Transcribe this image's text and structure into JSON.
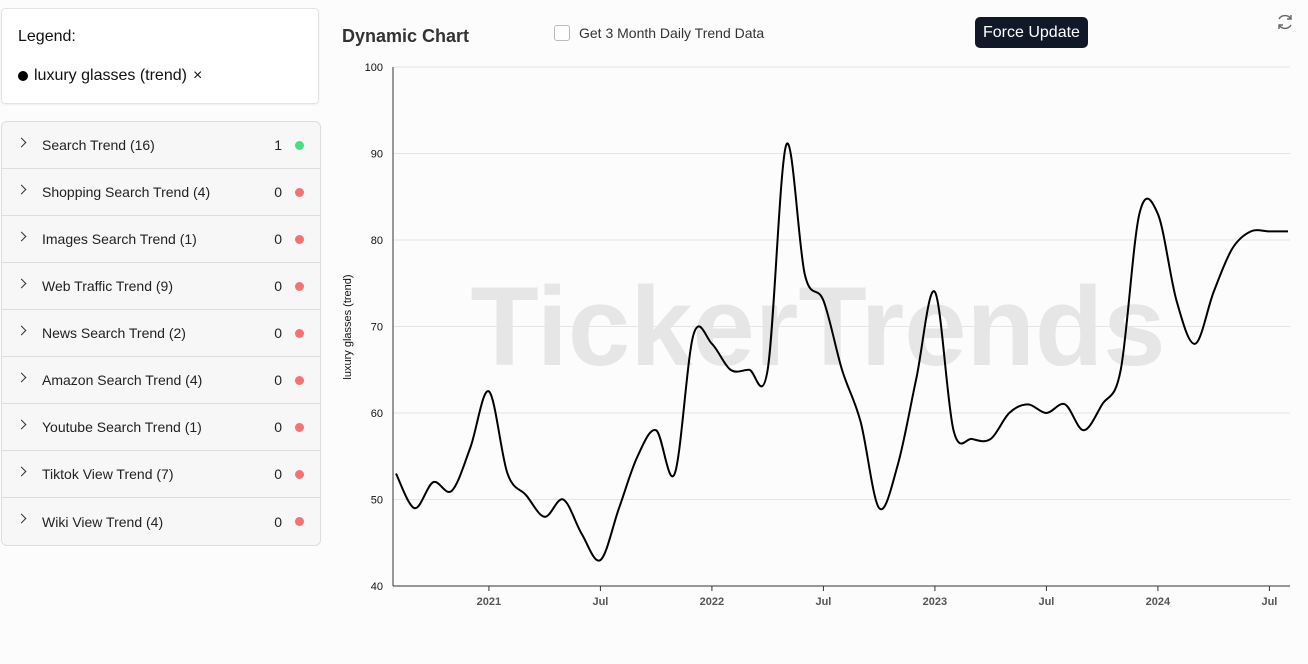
{
  "legend": {
    "title": "Legend:",
    "items": [
      {
        "name": "luxury glasses (trend)",
        "color": "#000000",
        "remove": "×"
      }
    ]
  },
  "sidebar": [
    {
      "label": "Search Trend (16)",
      "count": "1",
      "color": "#4ade80"
    },
    {
      "label": "Shopping Search Trend (4)",
      "count": "0",
      "color": "#f87171"
    },
    {
      "label": "Images Search Trend (1)",
      "count": "0",
      "color": "#f87171"
    },
    {
      "label": "Web Traffic Trend (9)",
      "count": "0",
      "color": "#f87171"
    },
    {
      "label": "News Search Trend (2)",
      "count": "0",
      "color": "#f87171"
    },
    {
      "label": "Amazon Search Trend (4)",
      "count": "0",
      "color": "#f87171"
    },
    {
      "label": "Youtube Search Trend (1)",
      "count": "0",
      "color": "#f87171"
    },
    {
      "label": "Tiktok View Trend (7)",
      "count": "0",
      "color": "#f87171"
    },
    {
      "label": "Wiki View Trend (4)",
      "count": "0",
      "color": "#f87171"
    }
  ],
  "controls": {
    "checkbox": "Get 3 Month Daily Trend Data",
    "button": "Force Update"
  },
  "chart_data": {
    "type": "line",
    "title": "Dynamic Chart",
    "ylabel": "luxury glasses  (trend)",
    "watermark": "TickerTrends",
    "x": [
      "2020-08",
      "2020-09",
      "2020-10",
      "2020-11",
      "2020-12",
      "2021-01",
      "2021-02",
      "2021-03",
      "2021-04",
      "2021-05",
      "2021-06",
      "2021-07",
      "2021-08",
      "2021-09",
      "2021-10",
      "2021-11",
      "2021-12",
      "2022-01",
      "2022-02",
      "2022-03",
      "2022-04",
      "2022-05",
      "2022-06",
      "2022-07",
      "2022-08",
      "2022-09",
      "2022-10",
      "2022-11",
      "2022-12",
      "2023-01",
      "2023-02",
      "2023-03",
      "2023-04",
      "2023-05",
      "2023-06",
      "2023-07",
      "2023-08",
      "2023-09",
      "2023-10",
      "2023-11",
      "2023-12",
      "2024-01",
      "2024-02",
      "2024-03",
      "2024-04",
      "2024-05",
      "2024-06",
      "2024-07",
      "2024-08"
    ],
    "series": [
      {
        "name": "luxury glasses (trend)",
        "color": "#000000",
        "values": [
          53,
          49,
          52,
          51,
          56,
          62.5,
          53,
          50.5,
          48,
          50,
          46,
          43,
          49,
          55,
          58,
          53,
          69,
          68,
          65,
          65,
          65,
          91,
          76,
          73,
          65,
          59,
          49,
          54,
          64,
          74,
          58,
          57,
          57,
          60,
          61,
          60,
          61,
          58,
          61,
          65,
          83,
          83,
          73,
          68,
          74,
          79,
          81,
          81,
          81
        ]
      }
    ],
    "xlim": [
      "2020-08",
      "2024-08"
    ],
    "xticks": [
      {
        "value": "2021-01",
        "label": "2021"
      },
      {
        "value": "2021-07",
        "label": "Jul"
      },
      {
        "value": "2022-01",
        "label": "2022"
      },
      {
        "value": "2022-07",
        "label": "Jul"
      },
      {
        "value": "2023-01",
        "label": "2023"
      },
      {
        "value": "2023-07",
        "label": "Jul"
      },
      {
        "value": "2024-01",
        "label": "2024"
      },
      {
        "value": "2024-07",
        "label": "Jul"
      }
    ],
    "ylim": [
      40,
      100
    ],
    "yticks": [
      40,
      50,
      60,
      70,
      80,
      90,
      100
    ],
    "grid": true
  }
}
